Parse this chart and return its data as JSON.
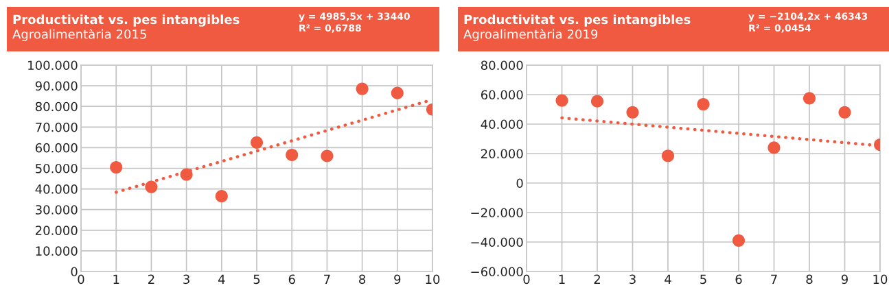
{
  "chart_data": [
    {
      "type": "scatter",
      "title": "Productivitat vs. pes intangibles",
      "subtitle": "Agroalimentària 2015",
      "annotations": [
        "y = 4985,5x + 33440",
        "R² = 0,6788"
      ],
      "grid": true,
      "marker": "circle",
      "xlim": [
        0,
        10
      ],
      "xticks": [
        0,
        1,
        2,
        3,
        4,
        5,
        6,
        7,
        8,
        9,
        10
      ],
      "ylim": [
        0,
        100000
      ],
      "yticks": [
        0,
        {
          "value": 10000,
          "label": "10.000"
        },
        {
          "value": 20000,
          "label": "20.000"
        },
        {
          "value": 30000,
          "label": "30.000"
        },
        {
          "value": 40000,
          "label": "40.000"
        },
        {
          "value": 50000,
          "label": "50.000"
        },
        {
          "value": 60000,
          "label": "60.000"
        },
        {
          "value": 70000,
          "label": "70.000"
        },
        {
          "value": 80000,
          "label": "80.000"
        },
        {
          "value": 90000,
          "label": "90.000"
        },
        {
          "value": 100000,
          "label": "100.000"
        }
      ],
      "series": [
        {
          "color": "#ef5a40",
          "x": [
            1,
            2,
            3,
            4,
            5,
            6,
            7,
            8,
            9,
            10
          ],
          "values": [
            50500,
            41000,
            47000,
            36500,
            62500,
            56500,
            56000,
            88500,
            86500,
            78500
          ]
        },
        {
          "type": "line",
          "color": "#ef5a40",
          "line_style": "dotted",
          "marker": "none",
          "x": [
            1,
            10
          ],
          "values": [
            38400,
            83300
          ]
        }
      ]
    },
    {
      "type": "scatter",
      "title": "Productivitat vs. pes intangibles",
      "subtitle": "Agroalimentària 2019",
      "annotations": [
        "y = −2104,2x + 46343",
        "R² = 0,0454"
      ],
      "grid": true,
      "marker": "circle",
      "xlim": [
        0,
        10
      ],
      "xticks": [
        0,
        1,
        2,
        3,
        4,
        5,
        6,
        7,
        8,
        9,
        10
      ],
      "ylim": [
        -60000,
        80000
      ],
      "yticks": [
        {
          "value": -60000,
          "label": "−60.000"
        },
        {
          "value": -40000,
          "label": "−40.000"
        },
        {
          "value": -20000,
          "label": "−20.000"
        },
        0,
        {
          "value": 20000,
          "label": "20.000"
        },
        {
          "value": 40000,
          "label": "40.000"
        },
        {
          "value": 60000,
          "label": "60.000"
        },
        {
          "value": 80000,
          "label": "80.000"
        }
      ],
      "series": [
        {
          "color": "#ef5a40",
          "x": [
            1,
            2,
            3,
            4,
            5,
            6,
            7,
            8,
            9,
            10
          ],
          "values": [
            56000,
            55500,
            48000,
            18500,
            53500,
            -39000,
            24000,
            57500,
            48000,
            26000
          ]
        },
        {
          "type": "line",
          "color": "#ef5a40",
          "line_style": "dotted",
          "marker": "none",
          "x": [
            1,
            10
          ],
          "values": [
            44200,
            25300
          ]
        }
      ]
    }
  ]
}
